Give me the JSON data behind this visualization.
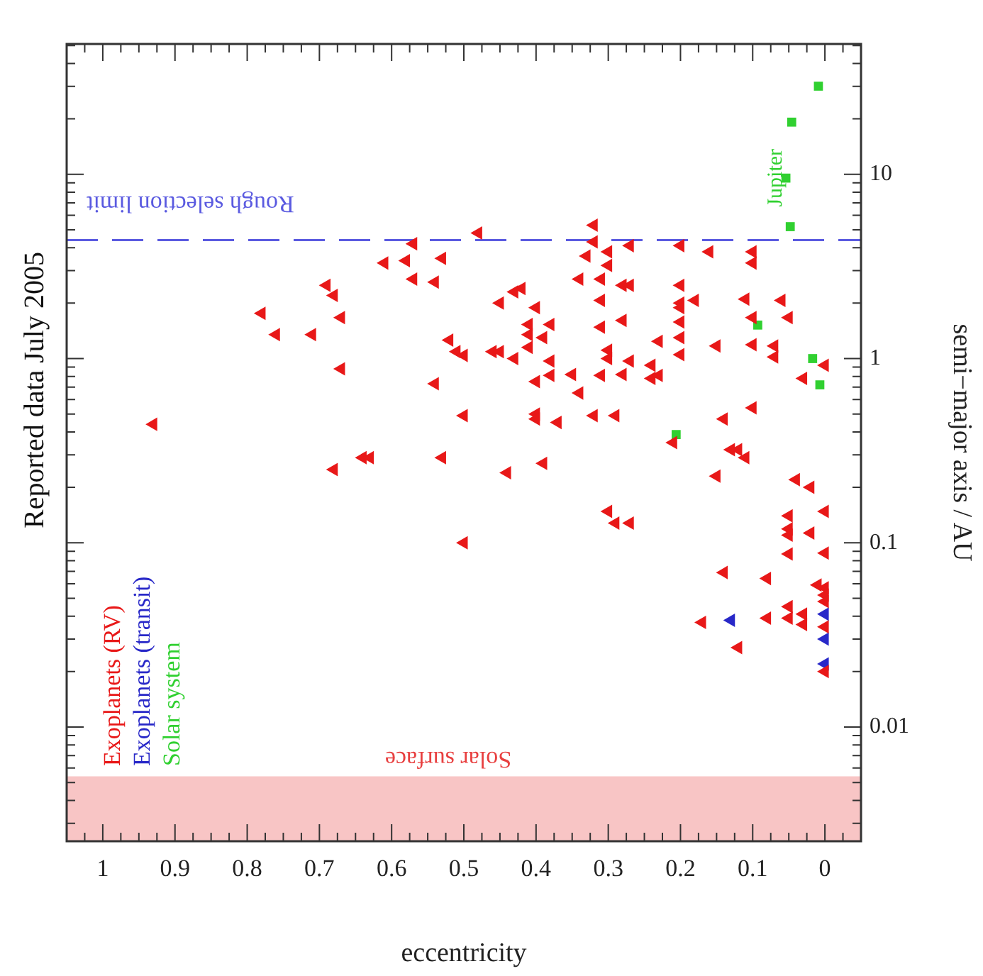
{
  "chart_data": {
    "type": "scatter",
    "title": "Reported data July 2005",
    "xlabel": "eccentricity",
    "ylabel": "semi−major axis / AU",
    "log": "y",
    "grid": false,
    "legend": "bottom left",
    "xlim": [
      1.05,
      -0.05
    ],
    "ylim": [
      0.0024,
      51
    ],
    "xticks": [
      {
        "value": -0.025,
        "label": null
      },
      0,
      {
        "value": 0.025,
        "label": null
      },
      {
        "value": 0.05,
        "label": null
      },
      {
        "value": 0.075,
        "label": null
      },
      0.1,
      {
        "value": 0.125,
        "label": null
      },
      {
        "value": 0.15,
        "label": null
      },
      {
        "value": 0.175,
        "label": null
      },
      0.2,
      {
        "value": 0.225,
        "label": null
      },
      {
        "value": 0.25,
        "label": null
      },
      {
        "value": 0.275,
        "label": null
      },
      0.3,
      {
        "value": 0.325,
        "label": null
      },
      {
        "value": 0.35,
        "label": null
      },
      {
        "value": 0.375,
        "label": null
      },
      0.4,
      {
        "value": 0.425,
        "label": null
      },
      {
        "value": 0.45,
        "label": null
      },
      {
        "value": 0.475,
        "label": null
      },
      0.5,
      {
        "value": 0.525,
        "label": null
      },
      {
        "value": 0.55,
        "label": null
      },
      {
        "value": 0.575,
        "label": null
      },
      0.6,
      {
        "value": 0.625,
        "label": null
      },
      {
        "value": 0.65,
        "label": null
      },
      {
        "value": 0.675,
        "label": null
      },
      0.7,
      {
        "value": 0.725,
        "label": null
      },
      {
        "value": 0.75,
        "label": null
      },
      {
        "value": 0.775,
        "label": null
      },
      0.8,
      {
        "value": 0.825,
        "label": null
      },
      {
        "value": 0.85,
        "label": null
      },
      {
        "value": 0.875,
        "label": null
      },
      0.9,
      {
        "value": 0.925,
        "label": null
      },
      {
        "value": 0.95,
        "label": null
      },
      {
        "value": 0.975,
        "label": null
      },
      1,
      {
        "value": 1.025,
        "label": null
      }
    ],
    "yticks": [
      {
        "value": 0.003,
        "label": null
      },
      {
        "value": 0.004,
        "label": null
      },
      {
        "value": 0.005,
        "label": null
      },
      {
        "value": 0.006,
        "label": null
      },
      {
        "value": 0.007,
        "label": null
      },
      {
        "value": 0.008,
        "label": null
      },
      {
        "value": 0.009,
        "label": null
      },
      0.01,
      {
        "value": 0.02,
        "label": null
      },
      {
        "value": 0.03,
        "label": null
      },
      {
        "value": 0.04,
        "label": null
      },
      {
        "value": 0.05,
        "label": null
      },
      {
        "value": 0.06,
        "label": null
      },
      {
        "value": 0.07,
        "label": null
      },
      {
        "value": 0.08,
        "label": null
      },
      {
        "value": 0.09,
        "label": null
      },
      0.1,
      {
        "value": 0.2,
        "label": null
      },
      {
        "value": 0.3,
        "label": null
      },
      {
        "value": 0.4,
        "label": null
      },
      {
        "value": 0.5,
        "label": null
      },
      {
        "value": 0.6,
        "label": null
      },
      {
        "value": 0.7,
        "label": null
      },
      {
        "value": 0.8,
        "label": null
      },
      {
        "value": 0.9,
        "label": null
      },
      1,
      {
        "value": 2,
        "label": null
      },
      {
        "value": 3,
        "label": null
      },
      {
        "value": 4,
        "label": null
      },
      {
        "value": 5,
        "label": null
      },
      {
        "value": 6,
        "label": null
      },
      {
        "value": 7,
        "label": null
      },
      {
        "value": 8,
        "label": null
      },
      {
        "value": 9,
        "label": null
      },
      10,
      {
        "value": 20,
        "label": null
      },
      {
        "value": 30,
        "label": null
      },
      {
        "value": 40,
        "label": null
      },
      {
        "value": 50,
        "label": null
      }
    ],
    "ref_lines": [
      {
        "axis": "y",
        "value": 4.4,
        "label": "Rough selection limit",
        "color": "#5a5ae0",
        "line_style": "dashed"
      }
    ],
    "bands": [
      {
        "axis": "y",
        "from": 0.0024,
        "to": 0.0054,
        "label": "Solar surface",
        "color": "#e84040"
      }
    ],
    "annotations": [
      {
        "text": "Jupiter",
        "x": 0.048,
        "y": 5.2
      }
    ],
    "series": [
      {
        "name": "Exoplanets (RV)",
        "color": "#e81818",
        "marker": "triangle",
        "values": [
          4.2,
          3.3,
          3.4,
          3.5,
          2.7,
          2.6,
          2.5,
          2.2,
          1.67,
          1.76,
          1.35,
          1.35,
          0.88,
          1.26,
          1.09,
          1.04,
          0.73,
          0.49,
          0.44,
          4.8,
          5.3,
          4.3,
          3.6,
          3.8,
          4.1,
          3.2,
          4.1,
          3.8,
          3.8,
          3.3,
          2.7,
          2.7,
          2.5,
          2.5,
          2.5,
          2.3,
          2.4,
          2.0,
          1.89,
          2.07,
          2.0,
          1.89,
          2.07,
          2.1,
          2.07,
          1.67,
          1.67,
          1.53,
          1.53,
          1.35,
          1.3,
          1.48,
          1.61,
          1.58,
          1.3,
          1.24,
          1.17,
          1.19,
          1.17,
          1.02,
          1.15,
          1.11,
          1.0,
          1.05,
          1.0,
          1.09,
          1.09,
          0.97,
          0.97,
          0.92,
          0.78,
          0.81,
          0.75,
          0.81,
          0.82,
          0.81,
          0.82,
          0.65,
          0.92,
          0.78,
          0.5,
          0.47,
          0.45,
          0.49,
          0.49,
          0.47,
          0.54,
          0.25,
          0.29,
          0.29,
          0.29,
          0.1,
          0.24,
          0.27,
          0.35,
          0.32,
          0.32,
          0.29,
          0.23,
          0.22,
          0.2,
          0.148,
          0.128,
          0.128,
          0.148,
          0.14,
          0.119,
          0.11,
          0.113,
          0.087,
          0.088,
          0.069,
          0.064,
          0.059,
          0.057,
          0.052,
          0.048,
          0.045,
          0.039,
          0.041,
          0.036,
          0.039,
          0.037,
          0.027,
          0.035,
          0.02
        ],
        "x": [
          0.57,
          0.61,
          0.58,
          0.53,
          0.57,
          0.54,
          0.69,
          0.68,
          0.67,
          0.78,
          0.76,
          0.71,
          0.67,
          0.52,
          0.51,
          0.5,
          0.54,
          0.5,
          0.93,
          0.48,
          0.32,
          0.32,
          0.33,
          0.3,
          0.27,
          0.3,
          0.2,
          0.16,
          0.1,
          0.1,
          0.34,
          0.31,
          0.28,
          0.27,
          0.2,
          0.43,
          0.42,
          0.45,
          0.4,
          0.31,
          0.2,
          0.2,
          0.18,
          0.11,
          0.06,
          0.05,
          0.1,
          0.41,
          0.38,
          0.41,
          0.39,
          0.31,
          0.28,
          0.2,
          0.2,
          0.23,
          0.15,
          0.1,
          0.07,
          0.07,
          0.41,
          0.3,
          0.3,
          0.2,
          0.43,
          0.46,
          0.45,
          0.38,
          0.27,
          0.24,
          0.24,
          0.23,
          0.4,
          0.38,
          0.35,
          0.31,
          0.28,
          0.34,
          0,
          0.03,
          0.4,
          0.4,
          0.37,
          0.32,
          0.29,
          0.14,
          0.1,
          0.68,
          0.64,
          0.63,
          0.53,
          0.5,
          0.44,
          0.39,
          0.21,
          0.13,
          0.12,
          0.11,
          0.15,
          0.04,
          0.02,
          0.3,
          0.29,
          0.27,
          0,
          0.05,
          0.05,
          0.05,
          0.02,
          0.05,
          0,
          0.14,
          0.08,
          0.01,
          0,
          0,
          0,
          0.05,
          0.05,
          0.03,
          0.03,
          0.08,
          0.17,
          0.12,
          0,
          0
        ]
      },
      {
        "name": "Exoplanets (transit)",
        "color": "#2828c8",
        "marker": "triangle",
        "values": [
          0.038,
          0.041,
          0.03,
          0.022
        ],
        "x": [
          0.13,
          0,
          0,
          0
        ]
      },
      {
        "name": "Solar system",
        "color": "#30d030",
        "marker": "square",
        "values": [
          0.387,
          0.72,
          1.0,
          1.52,
          5.2,
          9.54,
          19.2,
          30.1
        ],
        "x": [
          0.206,
          0.007,
          0.017,
          0.093,
          0.048,
          0.054,
          0.046,
          0.009
        ]
      }
    ]
  }
}
